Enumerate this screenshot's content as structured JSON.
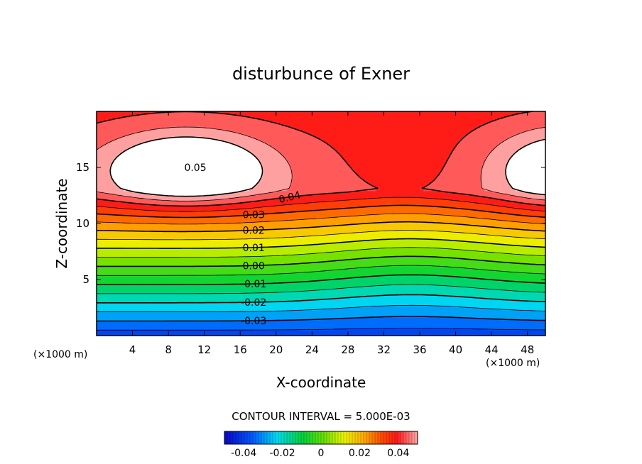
{
  "chart_data": {
    "type": "heatmap",
    "title": "disturbunce of Exner",
    "xlabel": "X-coordinate",
    "ylabel": "Z-coordinate",
    "x_unit": "(×1000 m)",
    "x_unit_right": "(×1000 m)",
    "xlim": [
      0,
      50
    ],
    "ylim": [
      0,
      20
    ],
    "xticks": [
      "4",
      "8",
      "12",
      "16",
      "20",
      "24",
      "28",
      "32",
      "36",
      "40",
      "44",
      "48"
    ],
    "yticks": [
      "5",
      "10",
      "15"
    ],
    "contour_interval_text": "CONTOUR INTERVAL = 5.000E-03",
    "contour_interval": 0.005,
    "value_range": [
      -0.05,
      0.05
    ],
    "contour_labels": [
      "0.05",
      "0.04",
      "0.03",
      "0.02",
      "0.01",
      "0.00",
      "-0.01",
      "-0.02",
      "-0.03"
    ],
    "colorbar_ticks": [
      "-0.04",
      "-0.02",
      "0",
      "0.02",
      "0.04"
    ],
    "colorbar_values": [
      -0.04,
      -0.02,
      0,
      0.02,
      0.04
    ],
    "colormap": "rainbow (blue = low, red = high)",
    "negative_contours": "dashed",
    "max_region_color": "#ffffff",
    "grid": false
  }
}
